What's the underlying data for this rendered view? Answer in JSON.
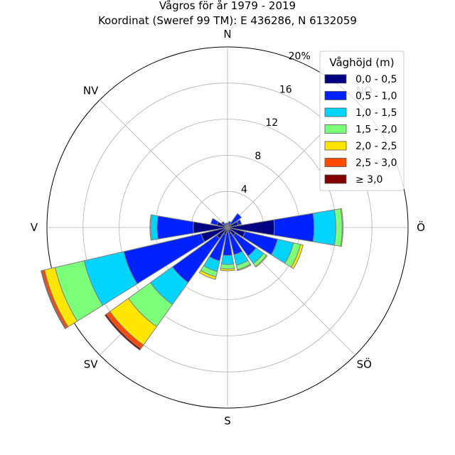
{
  "chart_data": {
    "type": "windrose",
    "title": "Vågros för år 1979 - 2019",
    "subtitle": "Koordinat (Sweref 99 TM): E 436286, N 6132059",
    "directions": [
      "N",
      "NNÖ",
      "NÖ",
      "ÖNÖ",
      "Ö",
      "ÖSÖ",
      "SÖ",
      "SSÖ",
      "S",
      "SSV",
      "SV",
      "VSV",
      "V",
      "VNV",
      "NV",
      "NNV"
    ],
    "direction_labels": [
      {
        "dir": "N",
        "text": "N"
      },
      {
        "dir": "NÖ",
        "text": "NÖ"
      },
      {
        "dir": "Ö",
        "text": "Ö"
      },
      {
        "dir": "SÖ",
        "text": "SÖ"
      },
      {
        "dir": "S",
        "text": "S"
      },
      {
        "dir": "SV",
        "text": "SV"
      },
      {
        "dir": "V",
        "text": "V"
      },
      {
        "dir": "NV",
        "text": "NV"
      }
    ],
    "radial_ticks": [
      4,
      8,
      12,
      16,
      20
    ],
    "radial_tick_labels": [
      "4",
      "8",
      "12",
      "16",
      "20%"
    ],
    "rmax": 20,
    "legend_title": "Våghöjd (m)",
    "legend_position": "top-right",
    "grid": true,
    "series": [
      {
        "name": "0,0 - 0,5",
        "color": "#000080",
        "values": [
          0.3,
          0.4,
          0.5,
          1.2,
          5.2,
          2.0,
          1.1,
          0.7,
          0.5,
          0.8,
          1.5,
          3.0,
          3.8,
          1.2,
          0.5,
          0.3
        ]
      },
      {
        "name": "0,5 - 1,0",
        "color": "#0022ff",
        "values": [
          0.2,
          0.3,
          1.4,
          0.4,
          4.4,
          3.7,
          2.8,
          2.4,
          2.6,
          3.0,
          6.0,
          8.8,
          4.0,
          0.7,
          0.3,
          0.2
        ]
      },
      {
        "name": "1,0 - 1,5",
        "color": "#00d4ff",
        "values": [
          0.0,
          0.0,
          0.0,
          0.0,
          2.4,
          1.8,
          1.0,
          1.2,
          1.0,
          1.2,
          3.0,
          4.5,
          0.7,
          0.0,
          0.0,
          0.0
        ]
      },
      {
        "name": "1,5 - 2,0",
        "color": "#7cff79",
        "values": [
          0.0,
          0.0,
          0.0,
          0.0,
          0.7,
          0.8,
          0.4,
          0.5,
          0.5,
          0.6,
          3.0,
          3.3,
          0.1,
          0.0,
          0.0,
          0.0
        ]
      },
      {
        "name": "2,0 - 2,5",
        "color": "#ffe600",
        "values": [
          0.0,
          0.0,
          0.0,
          0.0,
          0.1,
          0.3,
          0.1,
          0.1,
          0.2,
          0.3,
          2.5,
          1.2,
          0.0,
          0.0,
          0.0,
          0.0
        ]
      },
      {
        "name": "2,5 - 3,0",
        "color": "#ff4a00",
        "values": [
          0.0,
          0.0,
          0.0,
          0.0,
          0.0,
          0.0,
          0.0,
          0.0,
          0.0,
          0.0,
          0.5,
          0.3,
          0.0,
          0.0,
          0.0,
          0.0
        ]
      },
      {
        "name": "≥ 3,0",
        "color": "#800000",
        "values": [
          0.0,
          0.0,
          0.0,
          0.0,
          0.0,
          0.0,
          0.0,
          0.0,
          0.0,
          0.0,
          0.2,
          0.1,
          0.0,
          0.0,
          0.0,
          0.0
        ]
      }
    ]
  }
}
